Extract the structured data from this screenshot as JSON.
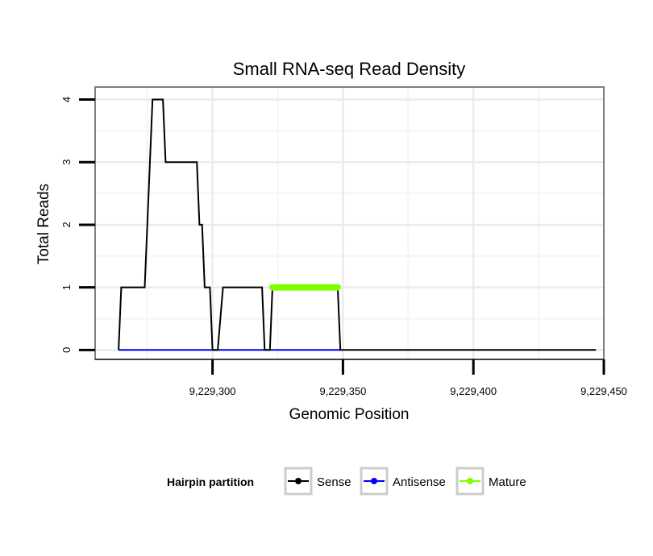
{
  "chart_data": {
    "type": "line",
    "title": "Small RNA-seq Read Density",
    "xlabel": "Genomic Position",
    "ylabel": "Total Reads",
    "xlim": [
      9229255,
      9229450
    ],
    "ylim": [
      -0.15,
      4.2
    ],
    "x_ticks": [
      9229300,
      9229350,
      9229400,
      9229450
    ],
    "x_tick_labels": [
      "9,229,300",
      "9,229,350",
      "9,229,400",
      "9,229,450"
    ],
    "y_ticks": [
      0,
      1,
      2,
      3,
      4
    ],
    "y_tick_labels": [
      "0",
      "1",
      "2",
      "3",
      "4"
    ],
    "grid": true,
    "legend": {
      "title": "Hairpin partition",
      "position": "bottom",
      "entries": [
        "Sense",
        "Antisense",
        "Mature"
      ]
    },
    "series": [
      {
        "name": "Sense",
        "color": "#000000",
        "x": [
          9229264,
          9229265,
          9229274,
          9229277,
          9229281,
          9229282,
          9229294,
          9229295,
          9229296,
          9229297,
          9229299,
          9229300,
          9229302,
          9229304,
          9229319,
          9229320,
          9229322,
          9229323,
          9229348,
          9229349,
          9229447
        ],
        "y": [
          0,
          1,
          1,
          4,
          4,
          3,
          3,
          2,
          2,
          1,
          1,
          0,
          0,
          1,
          1,
          0,
          0,
          1,
          1,
          0,
          0
        ]
      },
      {
        "name": "Antisense",
        "color": "#0000ff",
        "x": [
          9229264,
          9229349
        ],
        "y": [
          0,
          0
        ]
      },
      {
        "name": "Mature",
        "color": "#7fff00",
        "x": [
          9229323,
          9229348
        ],
        "y": [
          1,
          1
        ]
      }
    ]
  }
}
